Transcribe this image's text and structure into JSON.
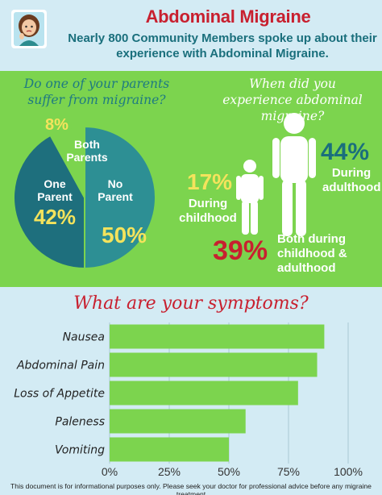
{
  "header": {
    "title": "Abdominal Migraine",
    "subtitle": "Nearly 800 Community Members spoke up about their experience with Abdominal Migraine."
  },
  "section_parents": {
    "question": "Do one of your parents suffer from migraine?"
  },
  "section_onset": {
    "question": "When did you experience abdominal migraine?",
    "adult_pct": "44%",
    "adult_label": "During adulthood",
    "child_pct": "17%",
    "child_label": "During childhood",
    "both_pct": "39%",
    "both_label": "Both during childhood & adulthood"
  },
  "symptoms": {
    "title": "What are your symptoms?"
  },
  "footer": {
    "disclaimer": "This document is for informational purposes only. Please seek your doctor for professional advice before any migraine treatment"
  },
  "colors": {
    "red": "#c8202f",
    "teal": "#1a6f7c",
    "green": "#7cd44e",
    "yellow": "#f4e35c",
    "bar": "#7cd44e"
  },
  "chart_data": [
    {
      "type": "pie",
      "slices": [
        {
          "label": "No Parent",
          "value": 50,
          "value_label": "50%"
        },
        {
          "label": "One Parent",
          "value": 42,
          "value_label": "42%"
        },
        {
          "label": "Both Parents",
          "value": 8,
          "value_label": "8%"
        }
      ]
    },
    {
      "type": "bar",
      "orientation": "horizontal",
      "categories": [
        "Nausea",
        "Abdominal Pain",
        "Loss of Appetite",
        "Paleness",
        "Vomiting"
      ],
      "values": [
        90,
        87,
        79,
        57,
        50
      ],
      "xlim": [
        0,
        100
      ],
      "ticks": [
        "0%",
        "25%",
        "50%",
        "75%",
        "100%"
      ],
      "grid": true
    }
  ]
}
